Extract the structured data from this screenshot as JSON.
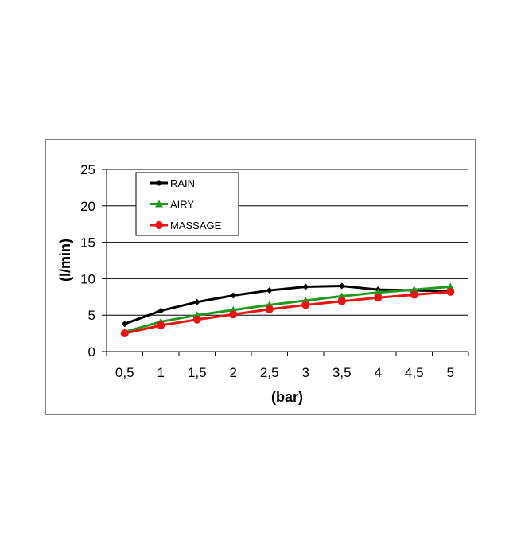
{
  "chart_data": {
    "type": "line",
    "title": "",
    "xlabel": "(bar)",
    "ylabel": "(l/min)",
    "categories": [
      "0,5",
      "1",
      "1,5",
      "2",
      "2,5",
      "3",
      "3,5",
      "4",
      "4,5",
      "5"
    ],
    "x": [
      0.5,
      1,
      1.5,
      2,
      2.5,
      3,
      3.5,
      4,
      4.5,
      5
    ],
    "ylim": [
      0,
      25
    ],
    "yticks": [
      "0",
      "5",
      "10",
      "15",
      "20",
      "25"
    ],
    "grid": "horizontal",
    "legend_position": "top-left",
    "series": [
      {
        "name": "RAIN",
        "color": "#000000",
        "marker": "diamond",
        "values": [
          3.8,
          5.6,
          6.8,
          7.7,
          8.4,
          8.9,
          9.0,
          8.5,
          8.4,
          8.3
        ]
      },
      {
        "name": "AIRY",
        "color": "#1f9a1f",
        "marker": "triangle",
        "values": [
          2.7,
          4.1,
          5.0,
          5.7,
          6.4,
          7.0,
          7.6,
          8.1,
          8.5,
          8.9
        ]
      },
      {
        "name": "MASSAGE",
        "color": "#ee1111",
        "marker": "circle",
        "values": [
          2.5,
          3.6,
          4.4,
          5.1,
          5.8,
          6.4,
          6.9,
          7.4,
          7.8,
          8.2
        ]
      }
    ]
  }
}
